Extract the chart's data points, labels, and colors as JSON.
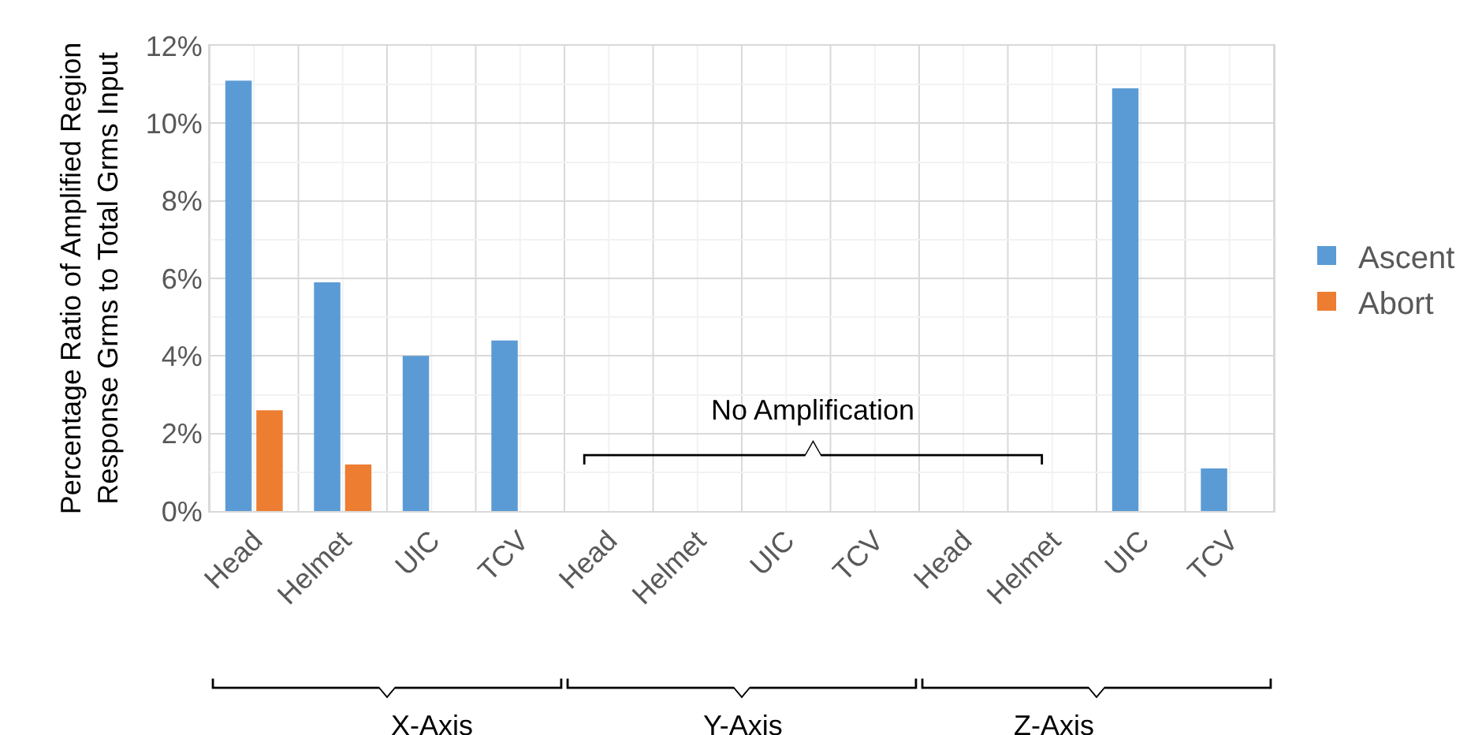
{
  "chart_data": {
    "type": "bar",
    "ylabel": "Percentage Ratio of Amplified Region\nResponse Grms to Total Grms Input",
    "categories": [
      "Head",
      "Helmet",
      "UIC",
      "TCV",
      "Head",
      "Helmet",
      "UIC",
      "TCV",
      "Head",
      "Helmet",
      "UIC",
      "TCV"
    ],
    "series": [
      {
        "name": "Ascent",
        "color": "#5b9bd5",
        "values": [
          11.1,
          5.9,
          4.0,
          4.4,
          0,
          0,
          0,
          0,
          0,
          0,
          10.9,
          1.1
        ]
      },
      {
        "name": "Abort",
        "color": "#ed7d31",
        "values": [
          2.6,
          1.2,
          0,
          0,
          0,
          0,
          0,
          0,
          0,
          0,
          0,
          0
        ]
      }
    ],
    "ylim": [
      0,
      12
    ],
    "yticks": [
      {
        "value": 0,
        "label": "0%"
      },
      {
        "value": 2,
        "label": "2%"
      },
      {
        "value": 4,
        "label": "4%"
      },
      {
        "value": 6,
        "label": "6%"
      },
      {
        "value": 8,
        "label": "8%"
      },
      {
        "value": 10,
        "label": "10%"
      },
      {
        "value": 12,
        "label": "12%"
      }
    ],
    "grid": true,
    "legend": "right",
    "annotations": [
      "X-Axis",
      "Y-Axis",
      "Z-Axis",
      "No Amplification"
    ]
  }
}
